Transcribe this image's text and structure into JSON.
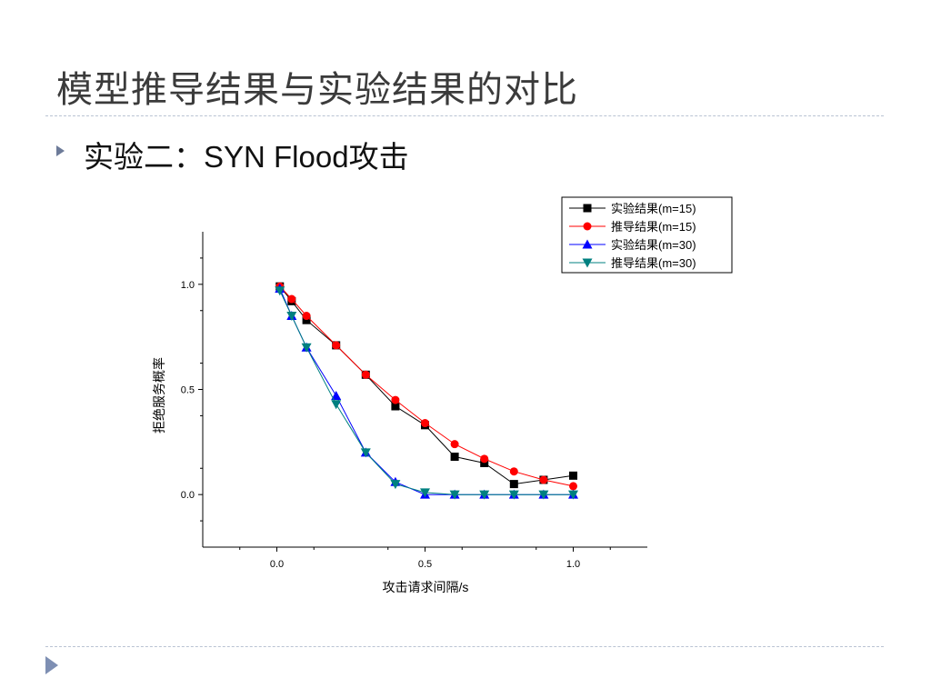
{
  "slide": {
    "title": "模型推导结果与实验结果的对比",
    "bullet": "实验二：SYN Flood攻击"
  },
  "chart_data": {
    "type": "line",
    "xlabel": "攻击请求间隔/s",
    "ylabel": "拒绝服务概率",
    "xlim": [
      -0.25,
      1.25
    ],
    "ylim": [
      -0.25,
      1.25
    ],
    "xticks": [
      0.0,
      0.5,
      1.0
    ],
    "yticks": [
      0.0,
      0.5,
      1.0
    ],
    "xtick_labels": [
      "0.0",
      "0.5",
      "1.0"
    ],
    "ytick_labels": [
      "0.0",
      "0.5",
      "1.0"
    ],
    "grid": false,
    "legend_position": "top-right",
    "series": [
      {
        "name": "实验结果(m=15)",
        "color": "#000000",
        "marker": "square",
        "x": [
          0.01,
          0.05,
          0.1,
          0.2,
          0.3,
          0.4,
          0.5,
          0.6,
          0.7,
          0.8,
          0.9,
          1.0
        ],
        "y": [
          0.99,
          0.92,
          0.83,
          0.71,
          0.57,
          0.42,
          0.33,
          0.18,
          0.15,
          0.05,
          0.07,
          0.09
        ]
      },
      {
        "name": "推导结果(m=15)",
        "color": "#ff0000",
        "marker": "circle",
        "x": [
          0.01,
          0.05,
          0.1,
          0.2,
          0.3,
          0.4,
          0.5,
          0.6,
          0.7,
          0.8,
          0.9,
          1.0
        ],
        "y": [
          0.99,
          0.93,
          0.85,
          0.71,
          0.57,
          0.45,
          0.34,
          0.24,
          0.17,
          0.11,
          0.07,
          0.04
        ]
      },
      {
        "name": "实验结果(m=30)",
        "color": "#0000ff",
        "marker": "triangle-up",
        "x": [
          0.01,
          0.05,
          0.1,
          0.2,
          0.3,
          0.4,
          0.5,
          0.6,
          0.7,
          0.8,
          0.9,
          1.0
        ],
        "y": [
          0.98,
          0.85,
          0.7,
          0.47,
          0.2,
          0.06,
          0.0,
          0.0,
          0.0,
          0.0,
          0.0,
          0.0
        ]
      },
      {
        "name": "推导结果(m=30)",
        "color": "#008080",
        "marker": "triangle-down",
        "x": [
          0.01,
          0.05,
          0.1,
          0.2,
          0.3,
          0.4,
          0.5,
          0.6,
          0.7,
          0.8,
          0.9,
          1.0
        ],
        "y": [
          0.97,
          0.85,
          0.7,
          0.43,
          0.2,
          0.05,
          0.01,
          0.0,
          0.0,
          0.0,
          0.0,
          0.0
        ]
      }
    ]
  }
}
